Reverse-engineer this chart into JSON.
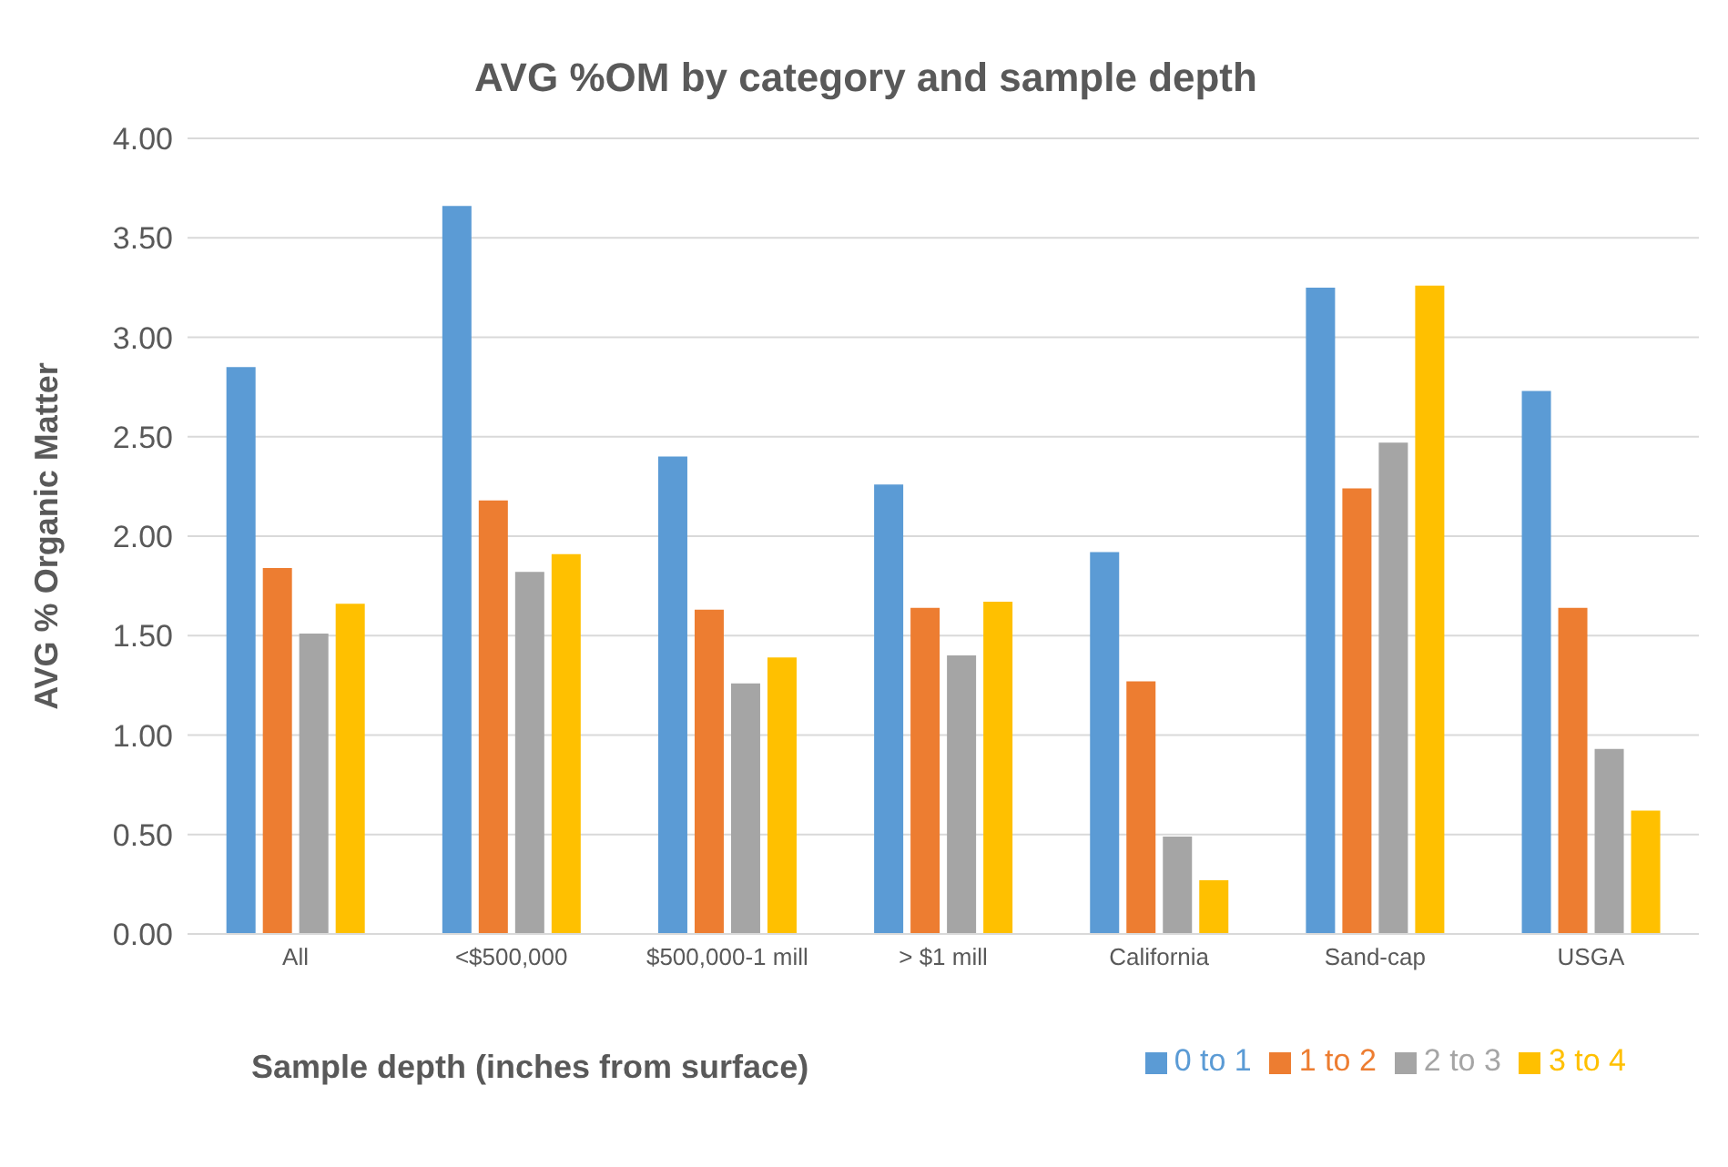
{
  "chart_data": {
    "type": "bar",
    "title": "AVG %OM by category and sample depth",
    "xlabel": "Sample depth (inches from surface)",
    "ylabel": "AVG % Organic Matter",
    "categories": [
      "All",
      "<$500,000",
      "$500,000-1 mill",
      "> $1 mill",
      "California",
      "Sand-cap",
      "USGA"
    ],
    "series": [
      {
        "name": "0 to 1",
        "color": "#5b9bd5",
        "values": [
          2.85,
          3.66,
          2.4,
          2.26,
          1.92,
          3.25,
          2.73
        ]
      },
      {
        "name": "1 to 2",
        "color": "#ed7d31",
        "values": [
          1.84,
          2.18,
          1.63,
          1.64,
          1.27,
          2.24,
          1.64
        ]
      },
      {
        "name": "2 to 3",
        "color": "#a5a5a5",
        "values": [
          1.51,
          1.82,
          1.26,
          1.4,
          0.49,
          2.47,
          0.93
        ]
      },
      {
        "name": "3 to 4",
        "color": "#ffc000",
        "values": [
          1.66,
          1.91,
          1.39,
          1.67,
          0.27,
          3.26,
          0.62
        ]
      }
    ],
    "ylim": [
      0,
      4
    ],
    "yticks": [
      {
        "value": 0,
        "label": "0.00"
      },
      {
        "value": 0.5,
        "label": "0.50"
      },
      {
        "value": 1,
        "label": "1.00"
      },
      {
        "value": 1.5,
        "label": "1.50"
      },
      {
        "value": 2,
        "label": "2.00"
      },
      {
        "value": 2.5,
        "label": "2.50"
      },
      {
        "value": 3,
        "label": "3.00"
      },
      {
        "value": 3.5,
        "label": "3.50"
      },
      {
        "value": 4,
        "label": "4.00"
      }
    ],
    "grid": "y",
    "legend": "bottom right"
  }
}
